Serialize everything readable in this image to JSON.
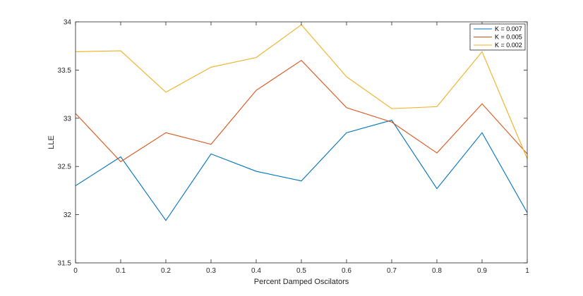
{
  "chart_data": {
    "type": "line",
    "title": "",
    "xlabel": "Percent Damped Oscilators",
    "ylabel": "LLE",
    "xlim": [
      0,
      1
    ],
    "ylim": [
      31.5,
      34
    ],
    "x": [
      0,
      0.1,
      0.2,
      0.3,
      0.4,
      0.5,
      0.6,
      0.7,
      0.8,
      0.9,
      1
    ],
    "xticks": [
      "0",
      "0.1",
      "0.2",
      "0.3",
      "0.4",
      "0.5",
      "0.6",
      "0.7",
      "0.8",
      "0.9",
      "1"
    ],
    "yticks": [
      "31.5",
      "32",
      "32.5",
      "33",
      "33.5",
      "34"
    ],
    "grid": false,
    "legend_position": "top-right",
    "series": [
      {
        "name": "K = 0.007",
        "color": "#0072BD",
        "values": [
          32.3,
          32.6,
          31.94,
          32.63,
          32.45,
          32.35,
          32.85,
          32.98,
          32.27,
          32.85,
          32.02
        ]
      },
      {
        "name": "K = 0.005",
        "color": "#D95319",
        "values": [
          33.05,
          32.55,
          32.85,
          32.73,
          33.29,
          33.6,
          33.11,
          32.96,
          32.64,
          33.15,
          32.63
        ]
      },
      {
        "name": "K = 0.002",
        "color": "#EDB120",
        "values": [
          33.69,
          33.7,
          33.27,
          33.53,
          33.63,
          33.97,
          33.43,
          33.1,
          33.12,
          33.69,
          32.58
        ]
      }
    ]
  }
}
